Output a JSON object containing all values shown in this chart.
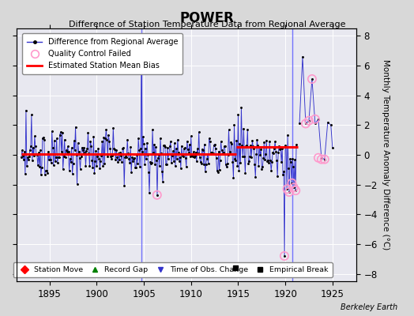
{
  "title": "POWER",
  "subtitle": "Difference of Station Temperature Data from Regional Average",
  "ylabel": "Monthly Temperature Anomaly Difference (°C)",
  "xlim": [
    1891.5,
    1927.5
  ],
  "ylim": [
    -8.5,
    8.5
  ],
  "yticks": [
    -8,
    -6,
    -4,
    -2,
    0,
    2,
    4,
    6,
    8
  ],
  "xticks": [
    1895,
    1900,
    1905,
    1910,
    1915,
    1920,
    1925
  ],
  "background_color": "#d8d8d8",
  "plot_background": "#e8e8f0",
  "grid_color": "#ffffff",
  "line_color": "#3333cc",
  "dot_color": "#000000",
  "qc_edge_color": "#ff99cc",
  "bias_color": "#ff0000",
  "vline_color": "#6666ff",
  "berkeley_earth_text": "Berkeley Earth",
  "seed": 15,
  "bias_y_seg1": 0.05,
  "bias_y_seg2": 0.55,
  "bias_x1_start": 1892.0,
  "bias_x1_end": 1914.8,
  "bias_x2_start": 1914.8,
  "bias_x2_end": 1921.3,
  "vline1_x": 1904.75,
  "vline2_x": 1920.75,
  "emp_break_x": 1914.75,
  "emp_break_y": -7.6,
  "main_t_start": 1892.0,
  "main_t_end": 1921.25,
  "late_t": [
    1921.5,
    1921.83,
    1922.16,
    1922.5,
    1922.83,
    1923.16,
    1923.5,
    1923.83,
    1924.16,
    1924.5,
    1924.83,
    1925.0
  ],
  "late_v": [
    2.1,
    6.6,
    2.1,
    2.3,
    5.1,
    2.1,
    2.4,
    -0.2,
    -0.3,
    2.2,
    2.0,
    0.5
  ],
  "qc_t": [
    1906.4,
    1919.9,
    1920.2,
    1920.4,
    1920.7,
    1920.9,
    1921.1,
    1922.16,
    1922.5,
    1922.83,
    1923.16,
    1923.5,
    1923.83,
    1924.16
  ],
  "qc_v": [
    -2.7,
    -6.8,
    -2.3,
    -2.5,
    -1.9,
    -2.2,
    -2.4,
    2.1,
    2.3,
    5.1,
    2.4,
    -0.2,
    -0.3,
    -0.3
  ]
}
